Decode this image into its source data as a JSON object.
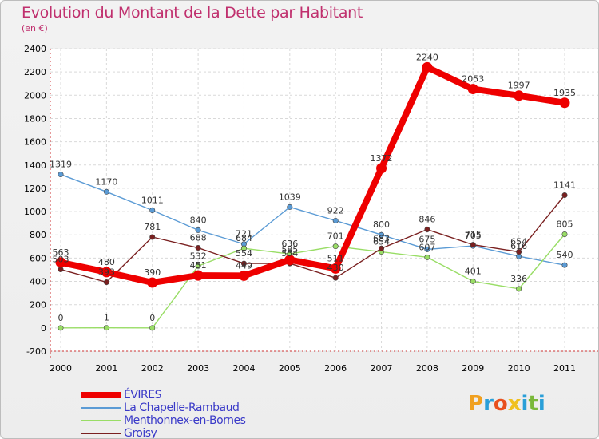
{
  "title": "Evolution du Montant de la Dette par Habitant",
  "subtitle": "(en €)",
  "logo": {
    "letters": [
      "P",
      "r",
      "o",
      "x",
      "i",
      "t",
      "i"
    ],
    "colors": [
      "#f0a020",
      "#2a9fd8",
      "#e8501e",
      "#f0c020",
      "#2a9fd8",
      "#7ab83a",
      "#2a9fd8"
    ]
  },
  "chart_data": {
    "type": "line",
    "categories": [
      "2000",
      "2001",
      "2002",
      "2003",
      "2004",
      "2005",
      "2006",
      "2007",
      "2008",
      "2009",
      "2010",
      "2011"
    ],
    "ylim": [
      -200,
      2400
    ],
    "yticks": [
      "2400",
      "2200",
      "2000",
      "1800",
      "1600",
      "1400",
      "1200",
      "1000",
      "800",
      "600",
      "400",
      "200",
      "0",
      "-200"
    ],
    "grid": true,
    "legend_position": "bottom-left",
    "series": [
      {
        "name": "ÉVIRES",
        "color": "#ee0000",
        "values": [
          563,
          480,
          390,
          451,
          449,
          585,
          511,
          1372,
          2240,
          2053,
          1997,
          1935
        ],
        "labels": [
          "563",
          "480",
          "390",
          "451",
          "449",
          "585",
          "511",
          "1372",
          "2240",
          "2053",
          "1997",
          "1935"
        ]
      },
      {
        "name": "La Chapelle-Rambaud",
        "color": "#5b9bd5",
        "values": [
          1319,
          1170,
          1011,
          840,
          721,
          1039,
          922,
          800,
          675,
          705,
          616,
          540
        ],
        "labels": [
          "1319",
          "1170",
          "1011",
          "840",
          "721",
          "1039",
          "922",
          "800",
          "675",
          "705",
          "616",
          "540"
        ]
      },
      {
        "name": "Menthonnex-en-Bornes",
        "color": "#99dd66",
        "values": [
          0,
          1,
          0,
          532,
          684,
          636,
          701,
          654,
          607,
          401,
          336,
          805
        ],
        "labels": [
          "0",
          "1",
          "0",
          "532",
          "684",
          "636",
          "701",
          "654",
          "607",
          "401",
          "336",
          "805"
        ]
      },
      {
        "name": "Groisy",
        "color": "#7a2020",
        "values": [
          503,
          393,
          781,
          688,
          554,
          554,
          430,
          683,
          846,
          715,
          654,
          1141
        ],
        "labels": [
          "503",
          "393",
          "781",
          "688",
          "554",
          "554",
          "430",
          "683",
          "846",
          "715",
          "654",
          "1141"
        ]
      }
    ]
  }
}
